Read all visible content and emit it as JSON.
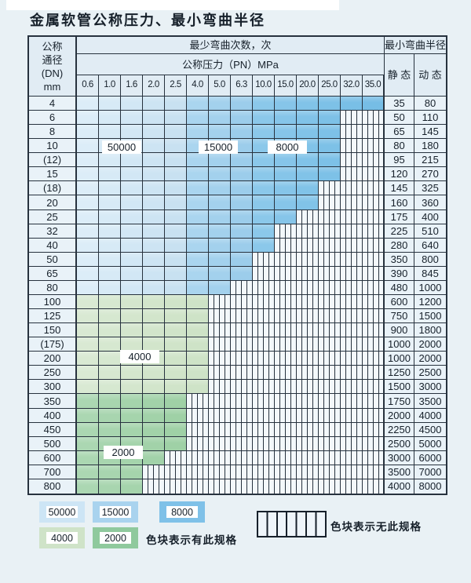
{
  "page": {
    "title": "金属软管公称压力、最小弯曲半径"
  },
  "table": {
    "corner_header": [
      "公称",
      "通径",
      "(DN)",
      "mm"
    ],
    "bend_times_header": "最少弯曲次数，次",
    "bend_radius_header": "最小弯曲半径",
    "pressure_header": "公称压力（PN）MPa",
    "static_header": "静 态",
    "dynamic_header": "动 态",
    "pressures": [
      "0.6",
      "1.0",
      "1.6",
      "2.0",
      "2.5",
      "4.0",
      "5.0",
      "6.3",
      "10.0",
      "15.0",
      "20.0",
      "25.0",
      "32.0",
      "35.0"
    ],
    "rows": [
      {
        "dn": "4",
        "zone": "blue",
        "max_pn_with_spec": "35.0",
        "static": "35",
        "dynamic": "80"
      },
      {
        "dn": "6",
        "zone": "blue",
        "max_pn_with_spec": "25.0",
        "static": "50",
        "dynamic": "110"
      },
      {
        "dn": "8",
        "zone": "blue",
        "max_pn_with_spec": "25.0",
        "static": "65",
        "dynamic": "145"
      },
      {
        "dn": "10",
        "zone": "blue",
        "max_pn_with_spec": "25.0",
        "static": "80",
        "dynamic": "180"
      },
      {
        "dn": "(12)",
        "zone": "blue",
        "max_pn_with_spec": "25.0",
        "static": "95",
        "dynamic": "215"
      },
      {
        "dn": "15",
        "zone": "blue",
        "max_pn_with_spec": "25.0",
        "static": "120",
        "dynamic": "270"
      },
      {
        "dn": "(18)",
        "zone": "blue",
        "max_pn_with_spec": "20.0",
        "static": "145",
        "dynamic": "325"
      },
      {
        "dn": "20",
        "zone": "blue",
        "max_pn_with_spec": "20.0",
        "static": "160",
        "dynamic": "360"
      },
      {
        "dn": "25",
        "zone": "blue",
        "max_pn_with_spec": "15.0",
        "static": "175",
        "dynamic": "400"
      },
      {
        "dn": "32",
        "zone": "blue",
        "max_pn_with_spec": "10.0",
        "static": "225",
        "dynamic": "510"
      },
      {
        "dn": "40",
        "zone": "blue",
        "max_pn_with_spec": "10.0",
        "static": "280",
        "dynamic": "640"
      },
      {
        "dn": "50",
        "zone": "blue",
        "max_pn_with_spec": "6.3",
        "static": "350",
        "dynamic": "800"
      },
      {
        "dn": "65",
        "zone": "blue",
        "max_pn_with_spec": "6.3",
        "static": "390",
        "dynamic": "845"
      },
      {
        "dn": "80",
        "zone": "blue",
        "max_pn_with_spec": "5.0",
        "static": "480",
        "dynamic": "1000"
      },
      {
        "dn": "100",
        "zone": "green-4000",
        "max_pn_with_spec": "4.0",
        "static": "600",
        "dynamic": "1200"
      },
      {
        "dn": "125",
        "zone": "green-4000",
        "max_pn_with_spec": "4.0",
        "static": "750",
        "dynamic": "1500"
      },
      {
        "dn": "150",
        "zone": "green-4000",
        "max_pn_with_spec": "4.0",
        "static": "900",
        "dynamic": "1800"
      },
      {
        "dn": "(175)",
        "zone": "green-4000",
        "max_pn_with_spec": "4.0",
        "static": "1000",
        "dynamic": "2000"
      },
      {
        "dn": "200",
        "zone": "green-4000",
        "max_pn_with_spec": "4.0",
        "static": "1000",
        "dynamic": "2000"
      },
      {
        "dn": "250",
        "zone": "green-4000",
        "max_pn_with_spec": "4.0",
        "static": "1250",
        "dynamic": "2500"
      },
      {
        "dn": "300",
        "zone": "green-4000",
        "max_pn_with_spec": "4.0",
        "static": "1500",
        "dynamic": "3000"
      },
      {
        "dn": "350",
        "zone": "green-2000",
        "max_pn_with_spec": "2.5",
        "static": "1750",
        "dynamic": "3500"
      },
      {
        "dn": "400",
        "zone": "green-2000",
        "max_pn_with_spec": "2.5",
        "static": "2000",
        "dynamic": "4000"
      },
      {
        "dn": "450",
        "zone": "green-2000",
        "max_pn_with_spec": "2.5",
        "static": "2250",
        "dynamic": "4500"
      },
      {
        "dn": "500",
        "zone": "green-2000",
        "max_pn_with_spec": "2.5",
        "static": "2500",
        "dynamic": "5000"
      },
      {
        "dn": "600",
        "zone": "green-2000",
        "max_pn_with_spec": "2.0",
        "static": "3000",
        "dynamic": "6000"
      },
      {
        "dn": "700",
        "zone": "green-2000",
        "max_pn_with_spec": "1.6",
        "static": "3500",
        "dynamic": "7000"
      },
      {
        "dn": "800",
        "zone": "green-2000",
        "max_pn_with_spec": "1.6",
        "static": "4000",
        "dynamic": "8000"
      }
    ]
  },
  "zone_labels": [
    {
      "text": "50000"
    },
    {
      "text": "15000"
    },
    {
      "text": "8000"
    },
    {
      "text": "4000"
    },
    {
      "text": "2000"
    }
  ],
  "legend": {
    "swatches": [
      {
        "label": "50000",
        "color": "#cde5f5"
      },
      {
        "label": "15000",
        "color": "#a9d3ee"
      },
      {
        "label": "8000",
        "color": "#7fc1e8"
      },
      {
        "label": "4000",
        "color": "#cfe3c8"
      },
      {
        "label": "2000",
        "color": "#8fc99d"
      }
    ],
    "has_spec_text": "色块表示有此规格",
    "no_spec_text": "色块表示无此规格"
  },
  "colors": {
    "blue_zone_50000": "#d2e7f5",
    "blue_zone_15000": "#a3d1ed",
    "blue_zone_8000": "#7dc1e7",
    "green_zone_4000": "#d4e6cd",
    "green_zone_2000": "#a5d4ac",
    "grid_line": "#27323e",
    "page_background": "#e9f1f5"
  }
}
